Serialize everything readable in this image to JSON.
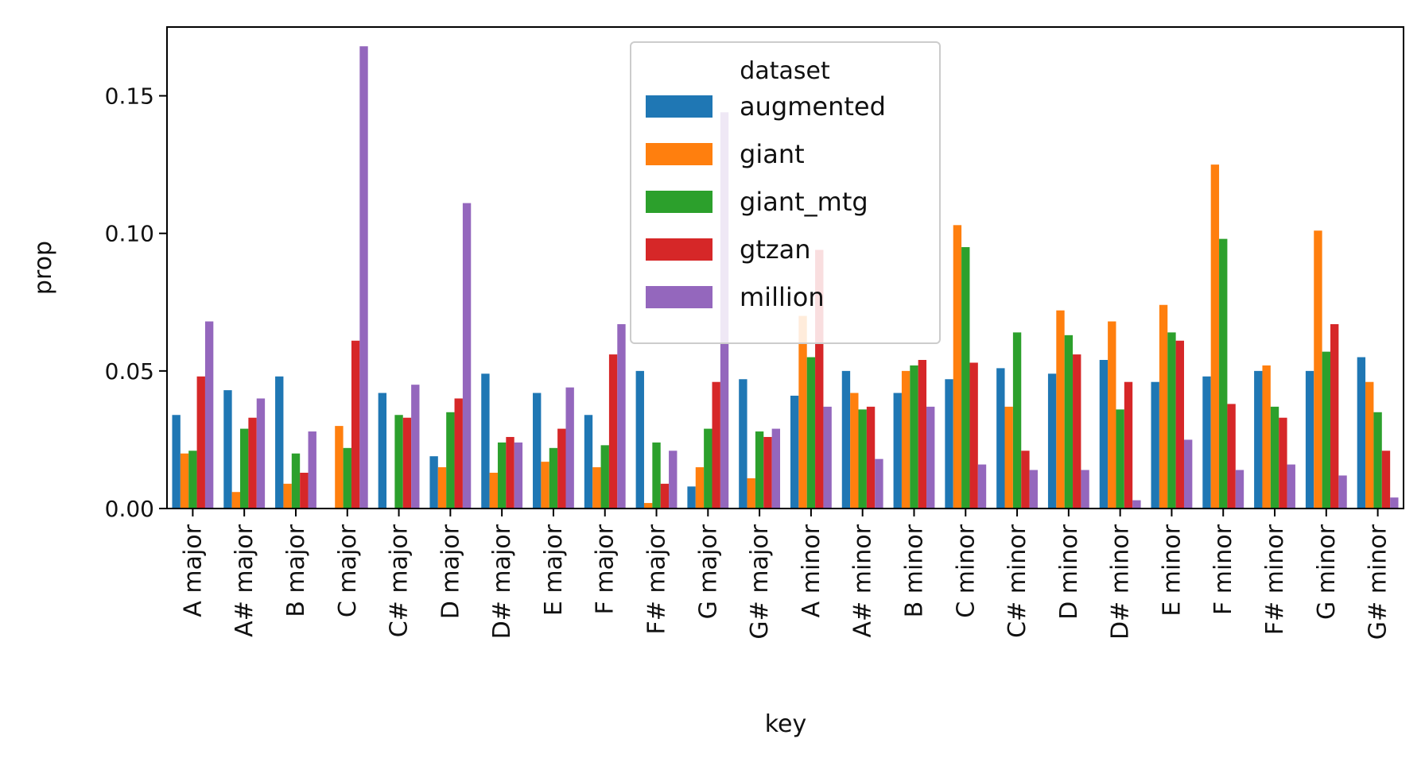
{
  "chart_data": {
    "type": "bar",
    "xlabel": "key",
    "ylabel": "prop",
    "ylim": [
      0,
      0.175
    ],
    "yticks": [
      0.0,
      0.05,
      0.1,
      0.15
    ],
    "ytick_labels": [
      "0.00",
      "0.05",
      "0.10",
      "0.15"
    ],
    "grid": false,
    "legend_position": "top-center",
    "legend_title": "dataset",
    "categories": [
      "A major",
      "A# major",
      "B major",
      "C major",
      "C# major",
      "D major",
      "D# major",
      "E major",
      "F major",
      "F# major",
      "G major",
      "G# major",
      "A minor",
      "A# minor",
      "B minor",
      "C minor",
      "C# minor",
      "D minor",
      "D# minor",
      "E minor",
      "F minor",
      "F# minor",
      "G minor",
      "G# minor"
    ],
    "series": [
      {
        "name": "augmented",
        "color": "#1f77b4",
        "values": [
          0.034,
          0.043,
          0.048,
          0.0,
          0.042,
          0.019,
          0.049,
          0.042,
          0.034,
          0.05,
          0.008,
          0.047,
          0.041,
          0.05,
          0.042,
          0.047,
          0.051,
          0.049,
          0.054,
          0.046,
          0.048,
          0.05,
          0.05,
          0.055
        ]
      },
      {
        "name": "giant",
        "color": "#ff7f0e",
        "values": [
          0.02,
          0.006,
          0.009,
          0.03,
          0.0,
          0.015,
          0.013,
          0.017,
          0.015,
          0.002,
          0.015,
          0.011,
          0.07,
          0.042,
          0.05,
          0.103,
          0.037,
          0.072,
          0.068,
          0.074,
          0.125,
          0.052,
          0.101,
          0.046
        ]
      },
      {
        "name": "giant_mtg",
        "color": "#2ca02c",
        "values": [
          0.021,
          0.029,
          0.02,
          0.022,
          0.034,
          0.035,
          0.024,
          0.022,
          0.023,
          0.024,
          0.029,
          0.028,
          0.055,
          0.036,
          0.052,
          0.095,
          0.064,
          0.063,
          0.036,
          0.064,
          0.098,
          0.037,
          0.057,
          0.035
        ]
      },
      {
        "name": "gtzan",
        "color": "#d62728",
        "values": [
          0.048,
          0.033,
          0.013,
          0.061,
          0.033,
          0.04,
          0.026,
          0.029,
          0.056,
          0.009,
          0.046,
          0.026,
          0.094,
          0.037,
          0.054,
          0.053,
          0.021,
          0.056,
          0.046,
          0.061,
          0.038,
          0.033,
          0.067,
          0.021
        ]
      },
      {
        "name": "million",
        "color": "#9467bd",
        "values": [
          0.068,
          0.04,
          0.028,
          0.168,
          0.045,
          0.111,
          0.024,
          0.044,
          0.067,
          0.021,
          0.144,
          0.029,
          0.037,
          0.018,
          0.037,
          0.016,
          0.014,
          0.014,
          0.003,
          0.025,
          0.014,
          0.016,
          0.012,
          0.004
        ]
      }
    ]
  }
}
